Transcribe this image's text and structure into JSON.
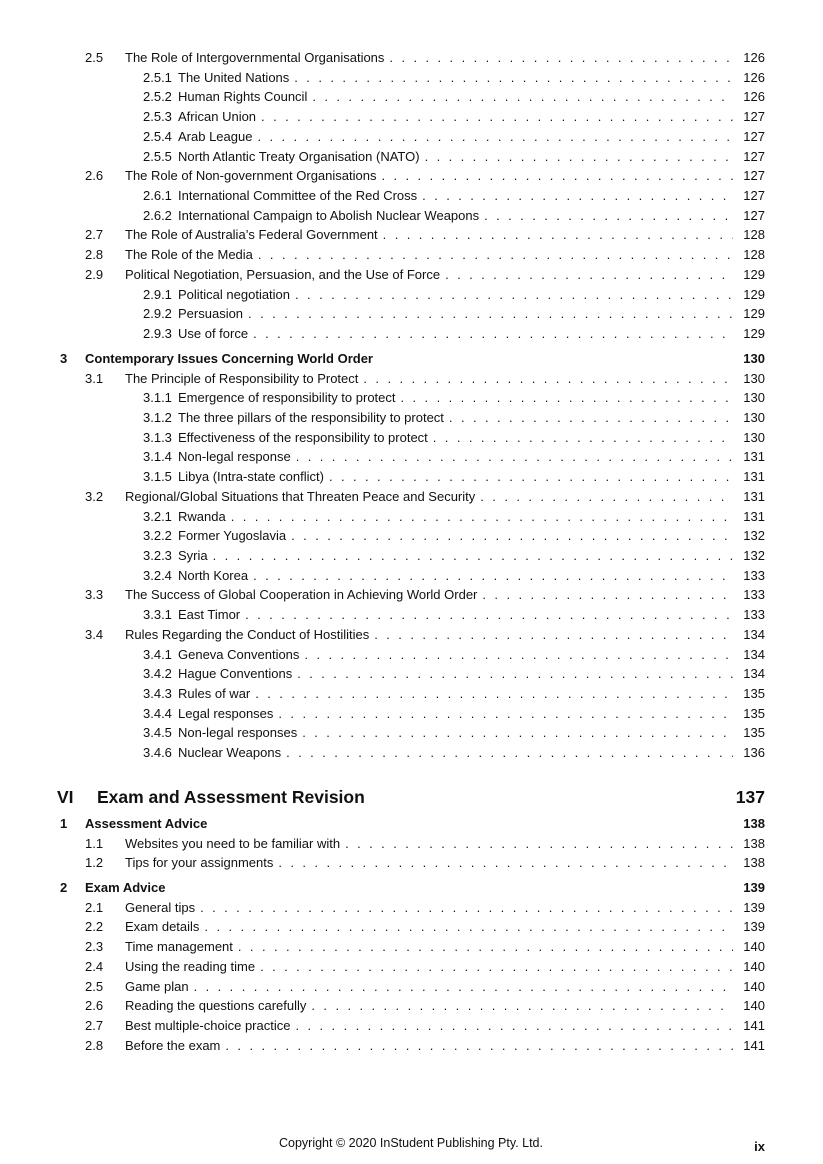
{
  "document": {
    "footer": {
      "copyright": "Copyright © 2020 InStudent Publishing Pty. Ltd.",
      "page_number": "ix"
    }
  },
  "toc": {
    "entries": [
      {
        "level": "section",
        "num": "2.5",
        "title": "The Role of Intergovernmental Organisations",
        "page": "126"
      },
      {
        "level": "subsection",
        "num": "2.5.1",
        "title": "The United Nations",
        "page": "126"
      },
      {
        "level": "subsection",
        "num": "2.5.2",
        "title": "Human Rights Council",
        "page": "126"
      },
      {
        "level": "subsection",
        "num": "2.5.3",
        "title": "African Union",
        "page": "127"
      },
      {
        "level": "subsection",
        "num": "2.5.4",
        "title": "Arab League",
        "page": "127"
      },
      {
        "level": "subsection",
        "num": "2.5.5",
        "title": "North Atlantic Treaty Organisation (NATO)",
        "page": "127"
      },
      {
        "level": "section",
        "num": "2.6",
        "title": "The Role of Non-government Organisations",
        "page": "127"
      },
      {
        "level": "subsection",
        "num": "2.6.1",
        "title": "International Committee of the Red Cross",
        "page": "127"
      },
      {
        "level": "subsection",
        "num": "2.6.2",
        "title": "International Campaign to Abolish Nuclear Weapons",
        "page": "127"
      },
      {
        "level": "section",
        "num": "2.7",
        "title": "The Role of Australia’s Federal Government",
        "page": "128"
      },
      {
        "level": "section",
        "num": "2.8",
        "title": "The Role of the Media",
        "page": "128"
      },
      {
        "level": "section",
        "num": "2.9",
        "title": "Political Negotiation, Persuasion, and the Use of Force",
        "page": "129"
      },
      {
        "level": "subsection",
        "num": "2.9.1",
        "title": "Political negotiation",
        "page": "129"
      },
      {
        "level": "subsection",
        "num": "2.9.2",
        "title": "Persuasion",
        "page": "129"
      },
      {
        "level": "subsection",
        "num": "2.9.3",
        "title": "Use of force",
        "page": "129"
      },
      {
        "level": "chapter",
        "num": "3",
        "title": "Contemporary Issues Concerning World Order",
        "page": "130"
      },
      {
        "level": "section",
        "num": "3.1",
        "title": "The Principle of Responsibility to Protect",
        "page": "130"
      },
      {
        "level": "subsection",
        "num": "3.1.1",
        "title": "Emergence of responsibility to protect",
        "page": "130"
      },
      {
        "level": "subsection",
        "num": "3.1.2",
        "title": "The three pillars of the responsibility to protect",
        "page": "130"
      },
      {
        "level": "subsection",
        "num": "3.1.3",
        "title": "Effectiveness of the responsibility to protect",
        "page": "130"
      },
      {
        "level": "subsection",
        "num": "3.1.4",
        "title": "Non-legal response",
        "page": "131"
      },
      {
        "level": "subsection",
        "num": "3.1.5",
        "title": "Libya (Intra-state conflict)",
        "page": "131"
      },
      {
        "level": "section",
        "num": "3.2",
        "title": "Regional/Global Situations that Threaten Peace and Security",
        "page": "131"
      },
      {
        "level": "subsection",
        "num": "3.2.1",
        "title": "Rwanda",
        "page": "131"
      },
      {
        "level": "subsection",
        "num": "3.2.2",
        "title": "Former Yugoslavia",
        "page": "132"
      },
      {
        "level": "subsection",
        "num": "3.2.3",
        "title": "Syria",
        "page": "132"
      },
      {
        "level": "subsection",
        "num": "3.2.4",
        "title": "North Korea",
        "page": "133"
      },
      {
        "level": "section",
        "num": "3.3",
        "title": "The Success of Global Cooperation in Achieving World Order",
        "page": "133"
      },
      {
        "level": "subsection",
        "num": "3.3.1",
        "title": "East Timor",
        "page": "133"
      },
      {
        "level": "section",
        "num": "3.4",
        "title": "Rules Regarding the Conduct of Hostilities",
        "page": "134"
      },
      {
        "level": "subsection",
        "num": "3.4.1",
        "title": "Geneva Conventions",
        "page": "134"
      },
      {
        "level": "subsection",
        "num": "3.4.2",
        "title": "Hague Conventions",
        "page": "134"
      },
      {
        "level": "subsection",
        "num": "3.4.3",
        "title": "Rules of war",
        "page": "135"
      },
      {
        "level": "subsection",
        "num": "3.4.4",
        "title": "Legal responses",
        "page": "135"
      },
      {
        "level": "subsection",
        "num": "3.4.5",
        "title": "Non-legal responses",
        "page": "135"
      },
      {
        "level": "subsection",
        "num": "3.4.6",
        "title": "Nuclear Weapons",
        "page": "136"
      },
      {
        "level": "part",
        "num": "VI",
        "title": "Exam and Assessment Revision",
        "page": "137"
      },
      {
        "level": "chapter",
        "num": "1",
        "title": "Assessment Advice",
        "page": "138"
      },
      {
        "level": "section",
        "num": "1.1",
        "title": "Websites you need to be familiar with",
        "page": "138"
      },
      {
        "level": "section",
        "num": "1.2",
        "title": "Tips for your assignments",
        "page": "138"
      },
      {
        "level": "chapter",
        "num": "2",
        "title": "Exam Advice",
        "page": "139"
      },
      {
        "level": "section",
        "num": "2.1",
        "title": "General tips",
        "page": "139"
      },
      {
        "level": "section",
        "num": "2.2",
        "title": "Exam details",
        "page": "139"
      },
      {
        "level": "section",
        "num": "2.3",
        "title": "Time management",
        "page": "140"
      },
      {
        "level": "section",
        "num": "2.4",
        "title": "Using the reading time",
        "page": "140"
      },
      {
        "level": "section",
        "num": "2.5",
        "title": "Game plan",
        "page": "140"
      },
      {
        "level": "section",
        "num": "2.6",
        "title": "Reading the questions carefully",
        "page": "140"
      },
      {
        "level": "section",
        "num": "2.7",
        "title": "Best multiple-choice practice",
        "page": "141"
      },
      {
        "level": "section",
        "num": "2.8",
        "title": "Before the exam",
        "page": "141"
      }
    ]
  }
}
